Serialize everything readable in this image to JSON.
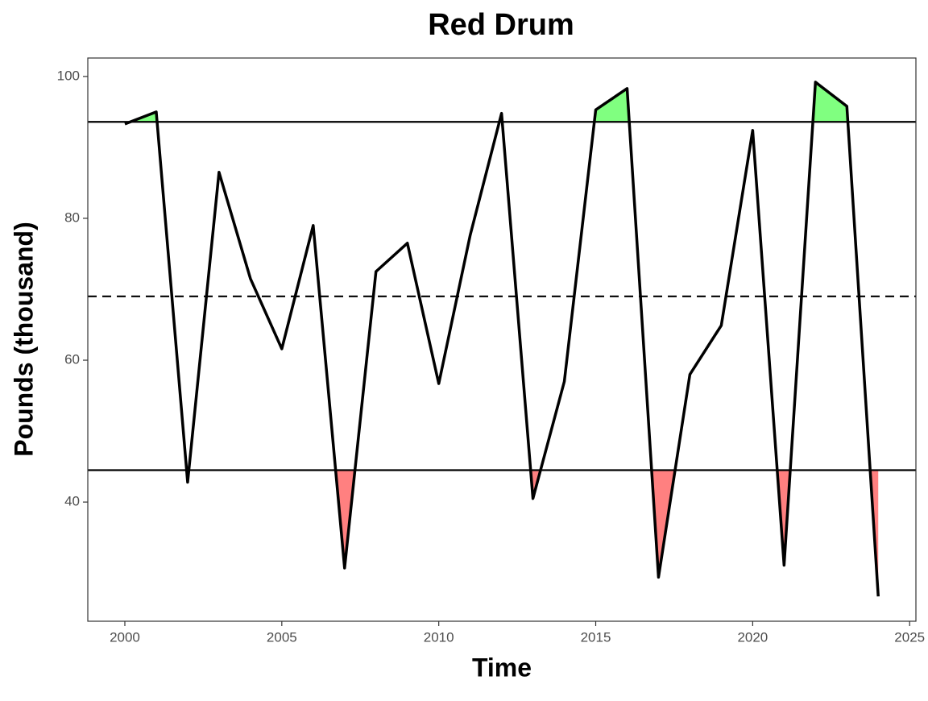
{
  "chart_data": {
    "type": "line",
    "title": "Red Drum",
    "xlabel": "Time",
    "ylabel": "Pounds (thousand)",
    "x": [
      2000,
      2001,
      2002,
      2003,
      2004,
      2005,
      2006,
      2007,
      2008,
      2009,
      2010,
      2011,
      2012,
      2013,
      2014,
      2015,
      2016,
      2017,
      2018,
      2019,
      2020,
      2021,
      2022,
      2023,
      2024
    ],
    "series": [
      {
        "color": "#000000",
        "values": [
          93.3,
          95.0,
          42.8,
          86.5,
          71.5,
          61.6,
          79.0,
          30.7,
          72.5,
          76.5,
          56.7,
          77.6,
          94.8,
          40.5,
          57.0,
          95.3,
          98.3,
          29.4,
          58.0,
          64.9,
          92.4,
          31.1,
          99.2,
          95.8,
          26.7
        ]
      }
    ],
    "reference_lines": [
      {
        "value": 93.6,
        "style": "solid"
      },
      {
        "value": 69.0,
        "style": "dashed"
      },
      {
        "value": 44.5,
        "style": "solid"
      }
    ],
    "above_color": "#80ff80",
    "below_color": "#ff8080",
    "xlim": [
      1998.82,
      2025.2
    ],
    "ylim": [
      23.2,
      102.6
    ],
    "xticks": [
      2000,
      2005,
      2010,
      2015,
      2020,
      2025
    ],
    "yticks": [
      40,
      60,
      80,
      100
    ]
  }
}
